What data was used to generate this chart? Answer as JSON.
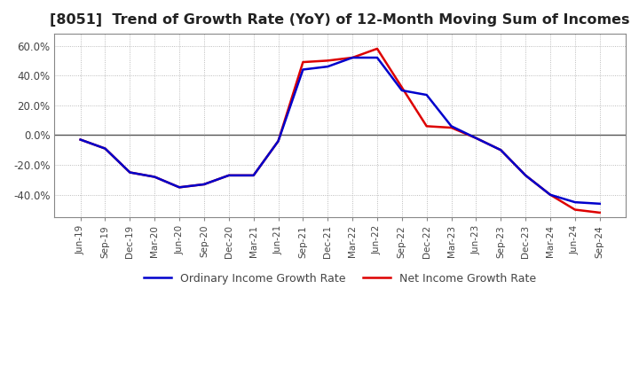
{
  "title": "[8051]  Trend of Growth Rate (YoY) of 12-Month Moving Sum of Incomes",
  "title_fontsize": 11.5,
  "ylim": [
    -0.55,
    0.68
  ],
  "yticks": [
    -0.4,
    -0.2,
    0.0,
    0.2,
    0.4,
    0.6
  ],
  "ytick_labels": [
    "-40.0%",
    "-20.0%",
    "0.0%",
    "20.0%",
    "40.0%",
    "60.0%"
  ],
  "x_labels": [
    "Jun-19",
    "Sep-19",
    "Dec-19",
    "Mar-20",
    "Jun-20",
    "Sep-20",
    "Dec-20",
    "Mar-21",
    "Jun-21",
    "Sep-21",
    "Dec-21",
    "Mar-22",
    "Jun-22",
    "Sep-22",
    "Dec-22",
    "Mar-23",
    "Jun-23",
    "Sep-23",
    "Dec-23",
    "Mar-24",
    "Jun-24",
    "Sep-24"
  ],
  "ordinary_income_growth_rate": [
    -0.03,
    -0.09,
    -0.25,
    -0.28,
    -0.35,
    -0.33,
    -0.27,
    -0.27,
    -0.04,
    0.44,
    0.46,
    0.52,
    0.52,
    0.3,
    0.27,
    0.06,
    -0.02,
    -0.1,
    -0.27,
    -0.4,
    -0.45,
    -0.46
  ],
  "net_income_growth_rate": [
    -0.03,
    -0.09,
    -0.25,
    -0.28,
    -0.35,
    -0.33,
    -0.27,
    -0.27,
    -0.04,
    0.49,
    0.5,
    0.52,
    0.58,
    0.32,
    0.06,
    0.05,
    -0.02,
    -0.1,
    -0.27,
    -0.4,
    -0.5,
    -0.52
  ],
  "ordinary_color": "#0000CC",
  "net_color": "#DD0000",
  "line_width": 1.8,
  "legend_labels": [
    "Ordinary Income Growth Rate",
    "Net Income Growth Rate"
  ],
  "grid_color": "#AAAAAA",
  "zero_line_color": "#555555",
  "background_color": "#FFFFFF",
  "border_color": "#888888"
}
